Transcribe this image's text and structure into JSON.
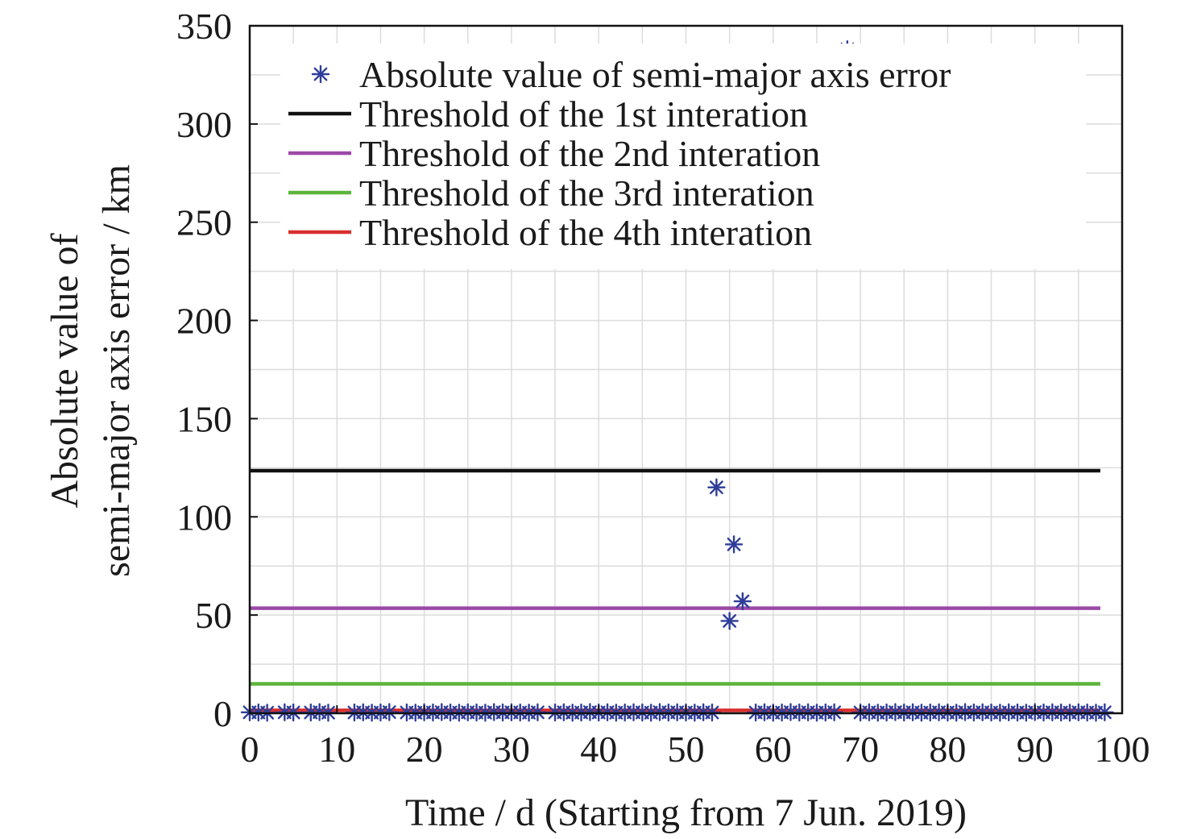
{
  "chart_data": {
    "type": "scatter",
    "title": "",
    "xlabel": "Time / d (Starting from 7 Jun. 2019)",
    "ylabel_lines": [
      "Absolute value of",
      "semi-major axis error / km"
    ],
    "xlim": [
      0,
      100
    ],
    "ylim": [
      0,
      350
    ],
    "x_ticks": [
      0,
      10,
      20,
      30,
      40,
      50,
      60,
      70,
      80,
      90,
      100
    ],
    "y_ticks": [
      0,
      50,
      100,
      150,
      200,
      250,
      300,
      350
    ],
    "grid": true,
    "legend_position": "top",
    "scatter_series": {
      "name": "Absolute value of semi-major axis error",
      "color": "#2e3d99",
      "marker": "asterisk",
      "points": [
        [
          0,
          0.5
        ],
        [
          1,
          0.4
        ],
        [
          2,
          0.3
        ],
        [
          4,
          0.5
        ],
        [
          5,
          0.4
        ],
        [
          7,
          0.4
        ],
        [
          8,
          0.6
        ],
        [
          9,
          0.3
        ],
        [
          12,
          0.4
        ],
        [
          13,
          0.5
        ],
        [
          14,
          0.3
        ],
        [
          15,
          0.4
        ],
        [
          16,
          0.6
        ],
        [
          18,
          0.4
        ],
        [
          19,
          0.3
        ],
        [
          20,
          0.5
        ],
        [
          21,
          0.4
        ],
        [
          22,
          0.6
        ],
        [
          23,
          0.4
        ],
        [
          24,
          0.3
        ],
        [
          25,
          0.5
        ],
        [
          26,
          0.4
        ],
        [
          27,
          0.3
        ],
        [
          28,
          0.6
        ],
        [
          29,
          0.4
        ],
        [
          30,
          0.5
        ],
        [
          31,
          0.4
        ],
        [
          32,
          0.3
        ],
        [
          33,
          0.5
        ],
        [
          35,
          0.4
        ],
        [
          36,
          0.5
        ],
        [
          37,
          0.3
        ],
        [
          38,
          0.4
        ],
        [
          39,
          0.6
        ],
        [
          40,
          0.4
        ],
        [
          41,
          0.5
        ],
        [
          42,
          0.3
        ],
        [
          43,
          0.4
        ],
        [
          44,
          0.5
        ],
        [
          45,
          0.4
        ],
        [
          46,
          0.3
        ],
        [
          47,
          0.6
        ],
        [
          48,
          0.4
        ],
        [
          49,
          0.5
        ],
        [
          50,
          0.4
        ],
        [
          51,
          0.3
        ],
        [
          52,
          0.5
        ],
        [
          53,
          0.4
        ],
        [
          53.5,
          115
        ],
        [
          55,
          47
        ],
        [
          55.5,
          86
        ],
        [
          56.5,
          57
        ],
        [
          58,
          0.4
        ],
        [
          59,
          0.5
        ],
        [
          60,
          0.3
        ],
        [
          61,
          0.4
        ],
        [
          62,
          0.6
        ],
        [
          63,
          0.4
        ],
        [
          64,
          0.5
        ],
        [
          65,
          0.3
        ],
        [
          66,
          0.4
        ],
        [
          67,
          0.5
        ],
        [
          68.5,
          338
        ],
        [
          70,
          0.4
        ],
        [
          71,
          0.5
        ],
        [
          72,
          0.3
        ],
        [
          73,
          0.4
        ],
        [
          74,
          0.6
        ],
        [
          75,
          0.4
        ],
        [
          76,
          0.5
        ],
        [
          77,
          0.3
        ],
        [
          78,
          0.4
        ],
        [
          79,
          0.5
        ],
        [
          80,
          0.4
        ],
        [
          81,
          0.3
        ],
        [
          82,
          0.6
        ],
        [
          83,
          0.4
        ],
        [
          84,
          0.5
        ],
        [
          85,
          0.4
        ],
        [
          86,
          0.3
        ],
        [
          87,
          0.5
        ],
        [
          88,
          0.4
        ],
        [
          89,
          0.3
        ],
        [
          90,
          0.6
        ],
        [
          91,
          0.4
        ],
        [
          92,
          0.5
        ],
        [
          93,
          0.4
        ],
        [
          94,
          0.3
        ],
        [
          95,
          0.5
        ],
        [
          96,
          0.4
        ],
        [
          97,
          0.3
        ],
        [
          98,
          0.5
        ]
      ]
    },
    "threshold_series": [
      {
        "name": "Threshold of the 1st interation",
        "color": "#111111",
        "y": 123.5,
        "x_range": [
          0,
          97.5
        ]
      },
      {
        "name": "Threshold of the 2nd interation",
        "color": "#9b49a6",
        "y": 53.5,
        "x_range": [
          0,
          97.5
        ]
      },
      {
        "name": "Threshold of the 3rd interation",
        "color": "#5cb33a",
        "y": 15,
        "x_range": [
          0,
          97.5
        ]
      },
      {
        "name": "Threshold of the 4th interation",
        "color": "#d9302e",
        "y": 1.5,
        "x_range": [
          0,
          97.5
        ]
      }
    ]
  }
}
